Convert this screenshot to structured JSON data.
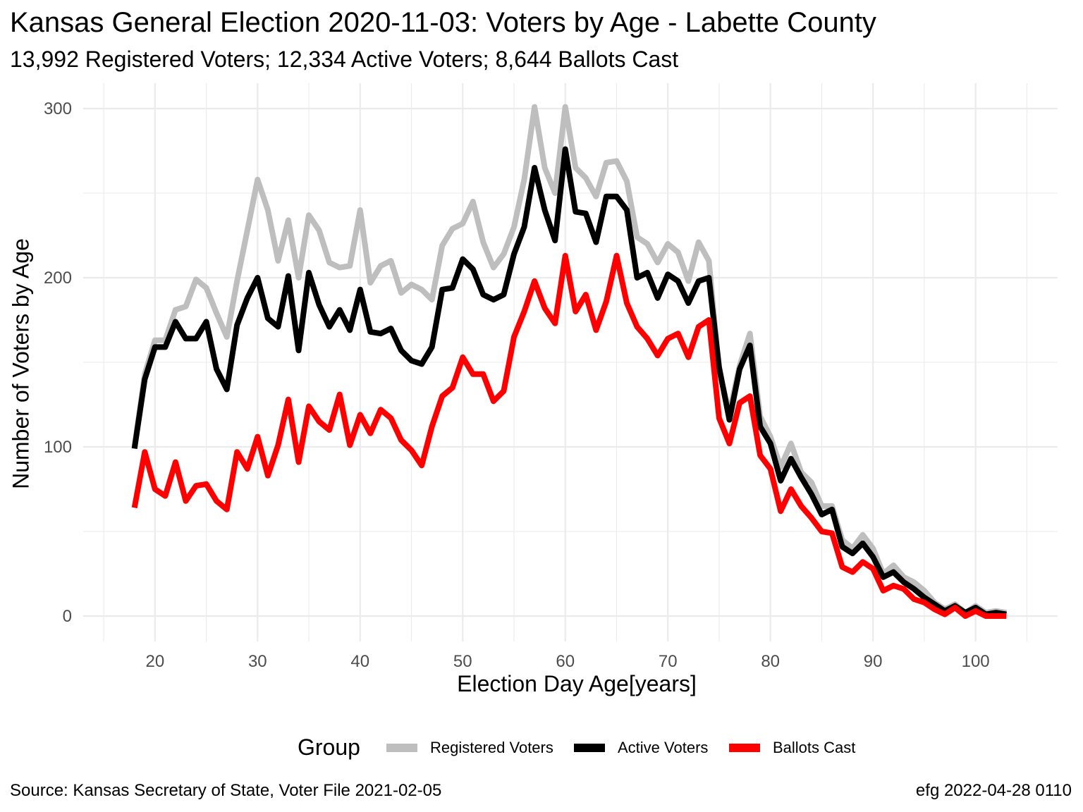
{
  "colors": {
    "registered": "#bebebe",
    "active": "#000000",
    "ballots": "#ff0000",
    "grid": "#ebebeb",
    "tick_text": "#4d4d4d"
  },
  "chart_data": {
    "type": "line",
    "title": "Kansas General Election 2020-11-03:  Voters by Age - Labette County",
    "subtitle": "13,992 Registered Voters; 12,334 Active Voters; 8,644 Ballots Cast",
    "xlabel": "Election Day Age[years]",
    "ylabel": "Number of Voters by Age",
    "xlim": [
      13,
      108
    ],
    "ylim": [
      -15,
      315
    ],
    "x_ticks": [
      20,
      30,
      40,
      50,
      60,
      70,
      80,
      90,
      100
    ],
    "y_ticks": [
      0,
      100,
      200,
      300
    ],
    "grid": true,
    "legend_position": "bottom",
    "legend_title": "Group",
    "x": [
      18,
      19,
      20,
      21,
      22,
      23,
      24,
      25,
      26,
      27,
      28,
      29,
      30,
      31,
      32,
      33,
      34,
      35,
      36,
      37,
      38,
      39,
      40,
      41,
      42,
      43,
      44,
      45,
      46,
      47,
      48,
      49,
      50,
      51,
      52,
      53,
      54,
      55,
      56,
      57,
      58,
      59,
      60,
      61,
      62,
      63,
      64,
      65,
      66,
      67,
      68,
      69,
      70,
      71,
      72,
      73,
      74,
      75,
      76,
      77,
      78,
      79,
      80,
      81,
      82,
      83,
      84,
      85,
      86,
      87,
      88,
      89,
      90,
      91,
      92,
      93,
      94,
      95,
      96,
      97,
      98,
      99,
      100,
      101,
      102,
      103
    ],
    "series": [
      {
        "name": "Registered Voters",
        "color": "#bebebe",
        "values": [
          100,
          143,
          163,
          163,
          181,
          183,
          199,
          194,
          179,
          165,
          198,
          228,
          258,
          240,
          210,
          234,
          200,
          237,
          228,
          209,
          206,
          207,
          240,
          197,
          207,
          210,
          191,
          196,
          193,
          187,
          219,
          229,
          232,
          245,
          221,
          206,
          214,
          230,
          258,
          301,
          265,
          250,
          301,
          265,
          259,
          248,
          268,
          269,
          257,
          224,
          220,
          209,
          220,
          215,
          198,
          221,
          210,
          145,
          120,
          148,
          167,
          118,
          106,
          88,
          102,
          85,
          79,
          65,
          65,
          45,
          40,
          48,
          40,
          25,
          30,
          23,
          20,
          15,
          8,
          4,
          7,
          2,
          6,
          2,
          3,
          2
        ]
      },
      {
        "name": "Active Voters",
        "color": "#000000",
        "values": [
          99,
          140,
          159,
          159,
          174,
          164,
          164,
          174,
          146,
          134,
          172,
          188,
          200,
          176,
          171,
          201,
          157,
          203,
          184,
          171,
          181,
          169,
          193,
          168,
          167,
          170,
          157,
          151,
          149,
          159,
          193,
          194,
          211,
          205,
          190,
          187,
          190,
          214,
          230,
          265,
          240,
          222,
          276,
          239,
          238,
          221,
          248,
          248,
          240,
          200,
          203,
          188,
          202,
          198,
          185,
          198,
          200,
          147,
          116,
          146,
          160,
          112,
          102,
          80,
          93,
          82,
          72,
          60,
          63,
          41,
          37,
          43,
          35,
          23,
          26,
          20,
          16,
          11,
          7,
          3,
          6,
          2,
          5,
          1,
          2,
          1
        ]
      },
      {
        "name": "Ballots Cast",
        "color": "#ff0000",
        "values": [
          64,
          97,
          75,
          71,
          91,
          68,
          77,
          78,
          68,
          63,
          97,
          87,
          106,
          83,
          101,
          128,
          91,
          124,
          115,
          110,
          131,
          101,
          119,
          108,
          122,
          117,
          104,
          98,
          89,
          112,
          130,
          135,
          153,
          143,
          143,
          127,
          133,
          165,
          180,
          198,
          182,
          173,
          213,
          180,
          190,
          169,
          186,
          213,
          185,
          171,
          164,
          154,
          164,
          167,
          153,
          171,
          175,
          117,
          102,
          126,
          130,
          95,
          87,
          62,
          75,
          65,
          58,
          50,
          49,
          29,
          26,
          32,
          28,
          15,
          18,
          16,
          10,
          8,
          4,
          1,
          5,
          0,
          3,
          0,
          0,
          0
        ]
      }
    ]
  },
  "caption": {
    "source": "Source:  Kansas Secretary of State, Voter File  2021-02-05",
    "credit": "efg 2022-04-28 0110"
  }
}
